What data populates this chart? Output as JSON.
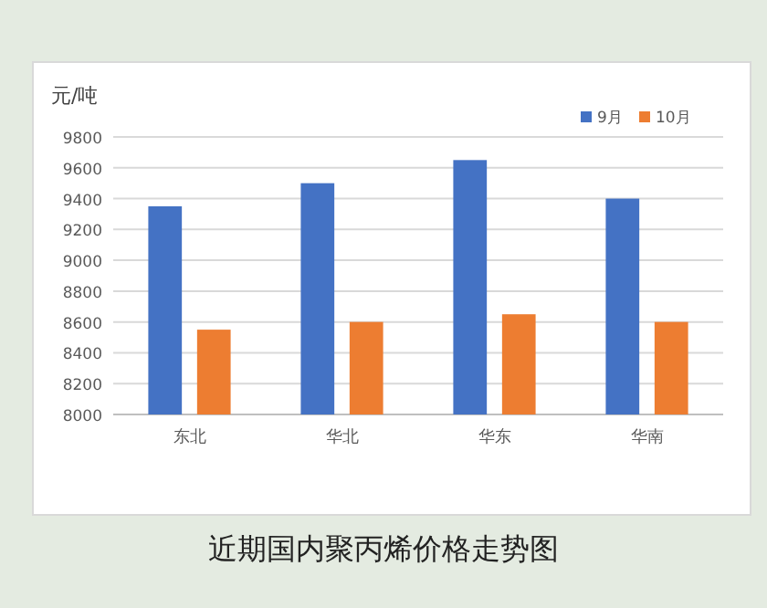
{
  "chart_data": {
    "type": "bar",
    "title": "近期国内聚丙烯价格走势图",
    "ylabel": "元/吨",
    "categories": [
      "东北",
      "华北",
      "华东",
      "华南"
    ],
    "series": [
      {
        "name": "9月",
        "color": "#4472c4",
        "values": [
          9350,
          9500,
          9650,
          9400
        ]
      },
      {
        "name": "10月",
        "color": "#ed7d31",
        "values": [
          8550,
          8600,
          8650,
          8600
        ]
      }
    ],
    "ylim": [
      8000,
      9800
    ],
    "yticks": [
      8000,
      8200,
      8400,
      8600,
      8800,
      9000,
      9200,
      9400,
      9600,
      9800
    ],
    "grid": "y",
    "legend": "top right"
  }
}
